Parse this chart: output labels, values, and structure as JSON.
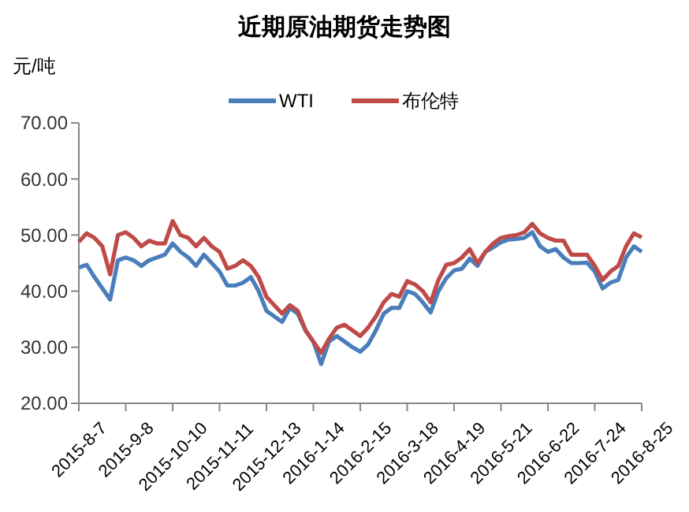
{
  "chart_data": {
    "type": "line",
    "title": "近期原油期货走势图",
    "ylabel": "元/吨",
    "categories": [
      "2015-8-7",
      null,
      null,
      null,
      null,
      null,
      "2015-9-8",
      null,
      null,
      null,
      null,
      null,
      "2015-10-10",
      null,
      null,
      null,
      null,
      null,
      "2015-11-11",
      null,
      null,
      null,
      null,
      null,
      "2015-12-13",
      null,
      null,
      null,
      null,
      null,
      "2016-1-14",
      null,
      null,
      null,
      null,
      null,
      "2016-2-15",
      null,
      null,
      null,
      null,
      null,
      "2016-3-18",
      null,
      null,
      null,
      null,
      null,
      "2016-4-19",
      null,
      null,
      null,
      null,
      null,
      "2016-5-21",
      null,
      null,
      null,
      null,
      null,
      "2016-6-22",
      null,
      null,
      null,
      null,
      null,
      "2016-7-24",
      null,
      null,
      null,
      null,
      null,
      "2016-8-25"
    ],
    "series": [
      {
        "name": "WTI",
        "color": "#4a7ebb",
        "values": [
          44.2,
          44.7,
          42.5,
          40.5,
          38.5,
          45.5,
          46,
          45.5,
          44.5,
          45.5,
          46,
          46.5,
          48.5,
          47,
          46,
          44.5,
          46.5,
          45,
          43.5,
          41,
          41,
          41.5,
          42.5,
          40,
          36.5,
          35.5,
          34.5,
          37,
          36,
          33,
          31,
          27,
          31,
          32,
          31,
          30,
          29.2,
          30.5,
          33,
          36,
          37,
          37,
          40,
          39.5,
          38,
          36.2,
          40,
          42.3,
          43.7,
          44,
          45.8,
          44.5,
          47,
          47.8,
          48.7,
          49.2,
          49.3,
          49.5,
          50.5,
          48,
          47,
          47.5,
          46,
          45,
          45,
          45.1,
          43.5,
          40.5,
          41.5,
          42,
          46,
          48,
          47
        ]
      },
      {
        "name": "布伦特",
        "color": "#be4b48",
        "values": [
          48.8,
          50.3,
          49.5,
          48,
          43,
          50,
          50.5,
          49.5,
          48,
          49,
          48.5,
          48.5,
          52.5,
          50,
          49.5,
          48,
          49.5,
          48,
          47,
          44,
          44.5,
          45.5,
          44.5,
          42.5,
          39,
          37.5,
          36,
          37.5,
          36.5,
          33,
          31,
          29,
          31.5,
          33.5,
          34,
          33,
          32,
          33.5,
          35.5,
          38,
          39.5,
          39,
          41.8,
          41.2,
          40,
          38,
          42,
          44.7,
          45,
          46,
          47.5,
          45,
          47,
          48.5,
          49.5,
          49.8,
          50,
          50.5,
          52,
          50.3,
          49.5,
          49,
          49,
          46.5,
          46.5,
          46.5,
          44.5,
          42,
          43.5,
          44.5,
          48,
          50.3,
          49.6
        ]
      }
    ],
    "ylim": [
      20,
      70
    ],
    "yticks": [
      {
        "value": 20,
        "label": "20.00"
      },
      {
        "value": 30,
        "label": "30.00"
      },
      {
        "value": 40,
        "label": "40.00"
      },
      {
        "value": 50,
        "label": "50.00"
      },
      {
        "value": 60,
        "label": "60.00"
      },
      {
        "value": 70,
        "label": "70.00"
      }
    ],
    "legend": "top",
    "grid": false,
    "marker": "none",
    "line_style": "solid"
  }
}
